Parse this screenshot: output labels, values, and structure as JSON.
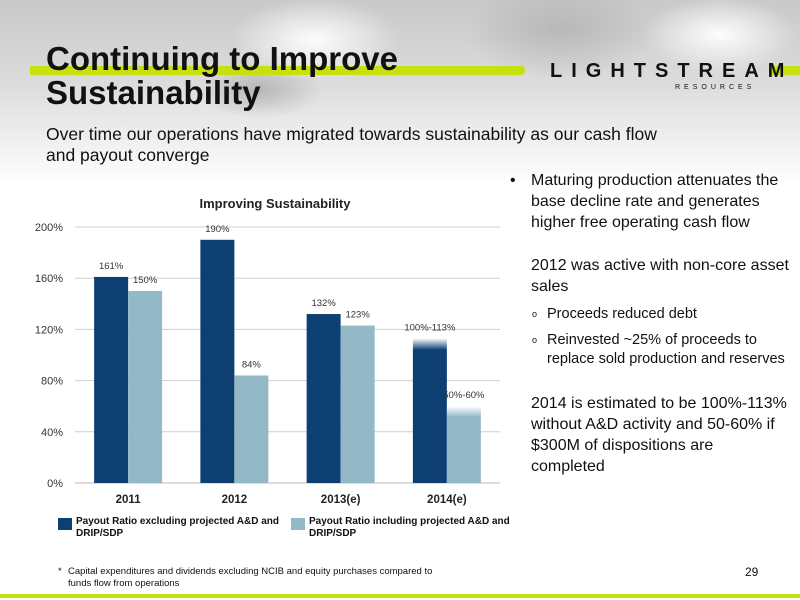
{
  "slide": {
    "title_line1": "Continuing to Improve",
    "title_line2": "Sustainability",
    "logo_word": "LIGHTSTREAM",
    "logo_sub": "RESOURCES",
    "subtitle": "Over time our operations have migrated towards sustainability as our cash flow and payout converge",
    "page_number": "29",
    "accent_color": "#c6e010"
  },
  "right_column": {
    "bullet_symbol": "•",
    "bullet_text": "Maturing production attenuates the base decline rate and generates higher free operating cash flow",
    "para_2012": "2012 was active with non-core asset sales",
    "sub_symbol": "o",
    "sub_items": [
      "Proceeds reduced debt",
      "Reinvested ~25% of proceeds to replace sold production and reserves"
    ],
    "para_2014": "2014 is estimated to be 100%-113% without A&D activity and 50-60% if $300M of dispositions are completed"
  },
  "footnote": {
    "star": "*",
    "text": "Capital expenditures and dividends excluding NCIB and equity purchases compared to funds flow from operations"
  },
  "chart_data": {
    "type": "bar",
    "title": "Improving Sustainability",
    "categories": [
      "2011",
      "2012",
      "2013(e)",
      "2014(e)"
    ],
    "y_ticks": [
      "0%",
      "40%",
      "80%",
      "120%",
      "160%",
      "200%"
    ],
    "ylim": [
      0,
      200
    ],
    "grid": true,
    "legend_position": "bottom",
    "series": [
      {
        "name": "Payout Ratio excluding projected A&D and DRIP/SDP",
        "color": "#0e3f73",
        "values": [
          161,
          190,
          132,
          113
        ],
        "labels": [
          "161%",
          "190%",
          "132%",
          "100%-113%"
        ]
      },
      {
        "name": "Payout Ratio including projected A&D and DRIP/SDP",
        "color": "#93b9c7",
        "values": [
          150,
          84,
          123,
          60
        ],
        "labels": [
          "150%",
          "84%",
          "123%",
          "50%-60%"
        ]
      }
    ]
  }
}
